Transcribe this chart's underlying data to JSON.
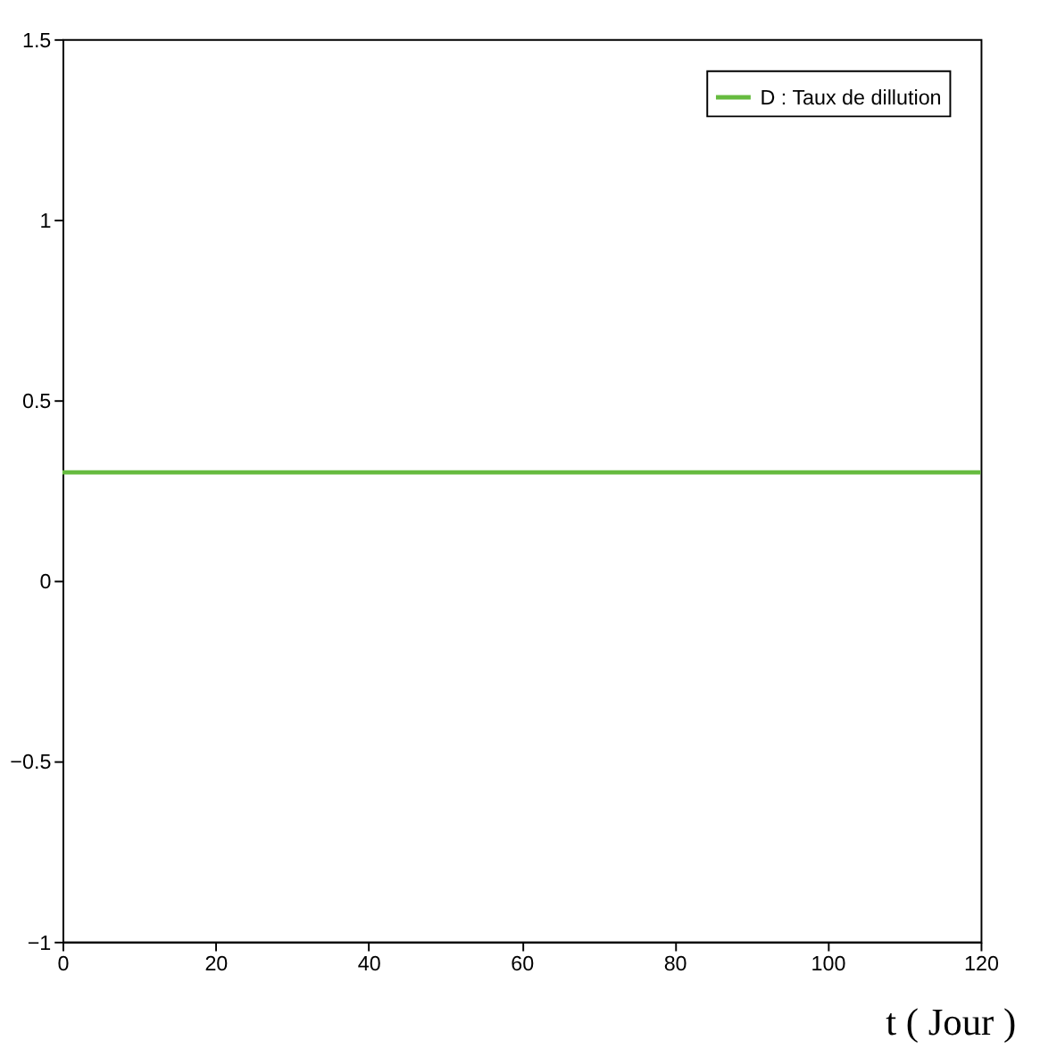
{
  "chart_data": {
    "type": "line",
    "xlabel": "t ( Jour )",
    "x": [
      0,
      120
    ],
    "series": [
      {
        "name": "D : Taux de dillution",
        "color": "#66bb3f",
        "values": [
          0.3,
          0.3
        ]
      }
    ],
    "xlim": [
      0,
      120
    ],
    "xticks": [
      0,
      20,
      40,
      60,
      80,
      100,
      120
    ],
    "ylim": [
      -1,
      1.5
    ],
    "yticks": [
      -1,
      -0.5,
      0,
      0.5,
      1,
      1.5
    ],
    "grid": false,
    "legend": "top right",
    "line_style": "solid"
  }
}
